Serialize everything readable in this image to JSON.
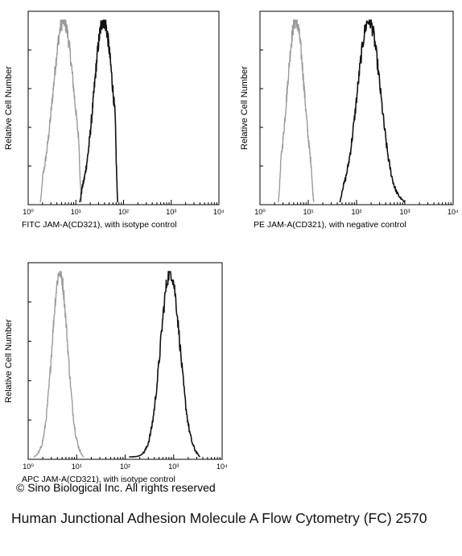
{
  "copyright": "© Sino Biological Inc. All rights reserved",
  "caption": "Human Junctional Adhesion Molecule A Flow Cytometry (FC) 2570",
  "colors": {
    "isotype_curve": "#9a9a9a",
    "sample_curve": "#111111",
    "frame": "#000000"
  },
  "chart_data": [
    {
      "type": "histogram",
      "title": "",
      "xlabel": "FITC  JAM-A(CD321),  with isotype control",
      "ylabel": "Relative Cell Number",
      "xscale": "log",
      "xlim": [
        1,
        10000
      ],
      "x_tick_labels": [
        "10⁰",
        "10¹",
        "10²",
        "10³",
        "10⁴"
      ],
      "grid": false,
      "series": [
        {
          "role": "control",
          "color": "#9a9a9a",
          "peak": 5.5,
          "sigma_decades": 0.22,
          "min": 1.8,
          "max": 13
        },
        {
          "role": "sample",
          "color": "#111111",
          "peak": 38,
          "sigma_decades": 0.2,
          "min": 12,
          "max": 75
        }
      ]
    },
    {
      "type": "histogram",
      "title": "",
      "xlabel": "PE  JAM-A(CD321),  with negative control",
      "ylabel": "Relative Cell Number",
      "xscale": "log",
      "xlim": [
        1,
        10000
      ],
      "x_tick_labels": [
        "10⁰",
        "10¹",
        "10²",
        "10³",
        "10⁴"
      ],
      "grid": false,
      "series": [
        {
          "role": "control",
          "color": "#9a9a9a",
          "peak": 5.5,
          "sigma_decades": 0.18,
          "min": 2.4,
          "max": 13
        },
        {
          "role": "sample",
          "color": "#111111",
          "peak": 180,
          "sigma_decades": 0.24,
          "min": 45,
          "max": 1000
        }
      ]
    },
    {
      "type": "histogram",
      "title": "",
      "xlabel": "APC  JAM-A(CD321),  with isotype control",
      "ylabel": "Relative Cell Number",
      "xscale": "log",
      "xlim": [
        1,
        10000
      ],
      "x_tick_labels": [
        "10⁰",
        "10¹",
        "10²",
        "10³",
        "10⁴"
      ],
      "grid": false,
      "series": [
        {
          "role": "control",
          "color": "#9a9a9a",
          "peak": 4.5,
          "sigma_decades": 0.16,
          "min": 1.3,
          "max": 14
        },
        {
          "role": "sample",
          "color": "#111111",
          "peak": 850,
          "sigma_decades": 0.2,
          "min": 120,
          "max": 3500
        }
      ]
    }
  ]
}
